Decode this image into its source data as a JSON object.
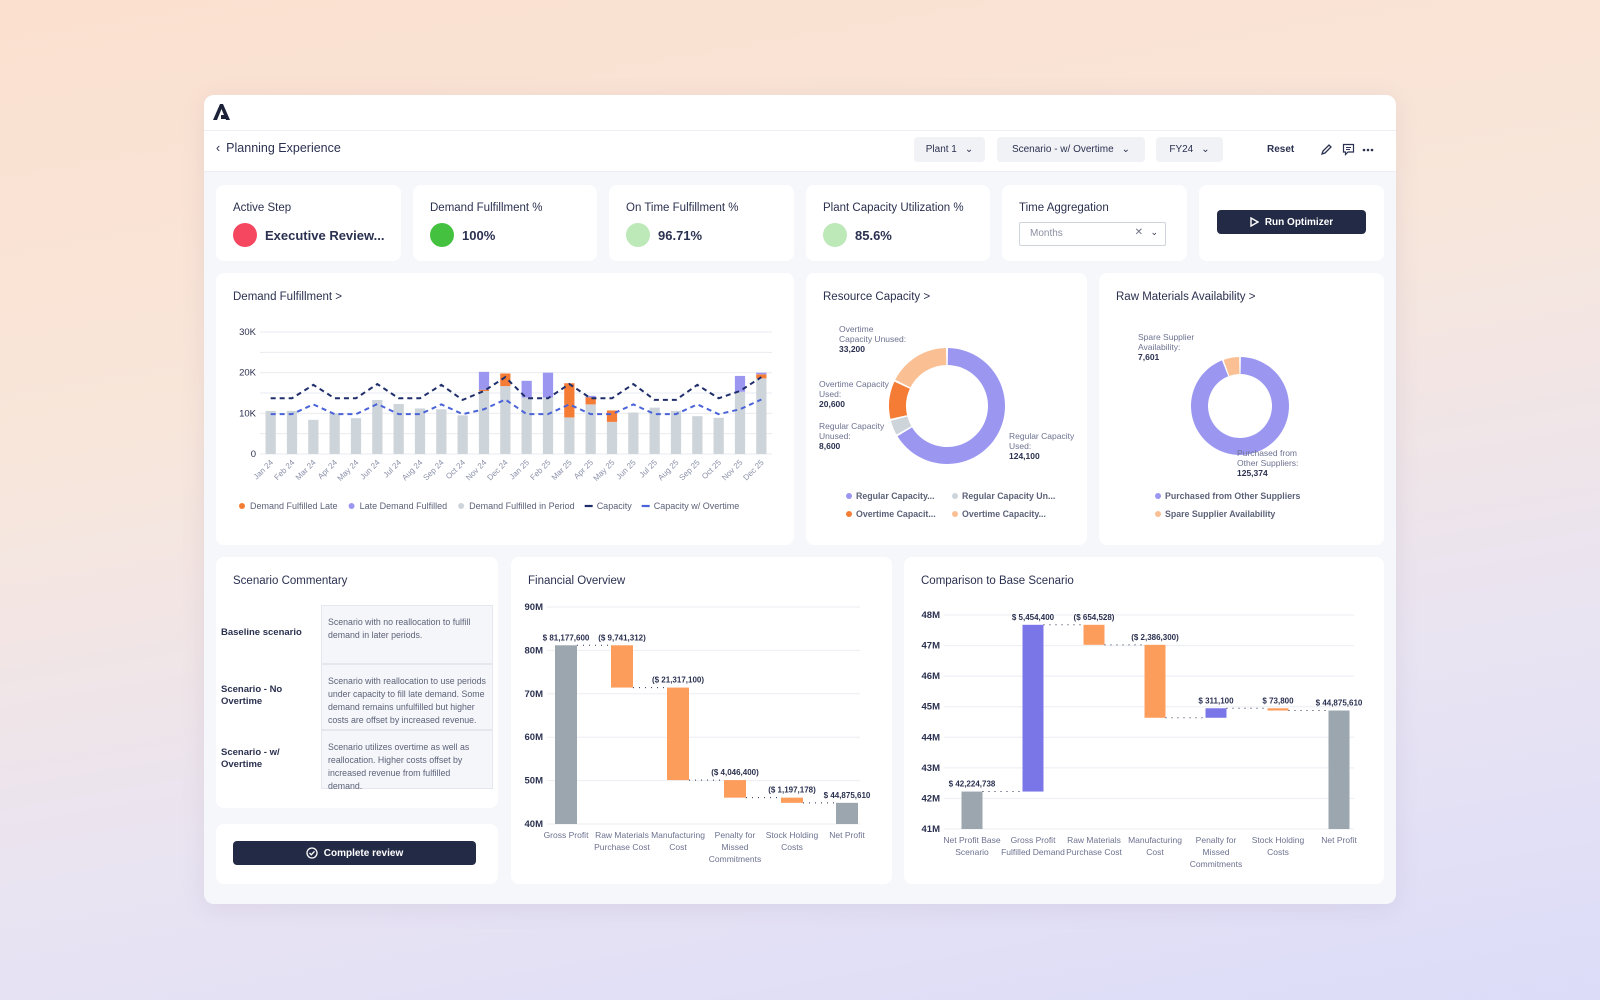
{
  "app": {
    "logo": "A",
    "page_title": "Planning Experience"
  },
  "toolbar": {
    "plant": "Plant 1",
    "scenario": "Scenario - w/ Overtime",
    "year": "FY24",
    "reset": "Reset"
  },
  "kpis": [
    {
      "title": "Active Step",
      "value": "Executive Review...",
      "color": "#f5475f"
    },
    {
      "title": "Demand Fulfillment %",
      "value": "100%",
      "color": "#44c13f"
    },
    {
      "title": "On Time Fulfillment %",
      "value": "96.71%",
      "color": "#bde8b8"
    },
    {
      "title": "Plant Capacity Utilization %",
      "value": "85.6%",
      "color": "#bde8b8"
    }
  ],
  "time_aggregation": {
    "title": "Time Aggregation",
    "value": "Months"
  },
  "run_optimizer": "Run Optimizer",
  "colors": {
    "purple": "#9b97f1",
    "orange": "#f57c35",
    "peach": "#fbbf94",
    "grey": "#cdd4da",
    "navy": "#1f2e6b",
    "blue": "#4a63d8",
    "wf_grey": "#9ba6af",
    "wf_orange": "#fd9d5c",
    "wf_purple": "#7b76e8"
  },
  "chart_data": [
    {
      "type": "bar",
      "title": "Demand Fulfillment >",
      "ylim": [
        0,
        30000
      ],
      "yticks": [
        "0",
        "10K",
        "20K",
        "30K"
      ],
      "categories": [
        "Jan 24",
        "Feb 24",
        "Mar 24",
        "Apr 24",
        "May 24",
        "Jun 24",
        "Jul 24",
        "Aug 24",
        "Sep 24",
        "Oct 24",
        "Nov 24",
        "Dec 24",
        "Jan 25",
        "Feb 25",
        "Mar 25",
        "Apr 25",
        "May 25",
        "Jun 25",
        "Jul 25",
        "Aug 25",
        "Sep 25",
        "Oct 25",
        "Nov 25",
        "Dec 25"
      ],
      "series": [
        {
          "name": "Demand Fulfilled in Period",
          "kind": "bar",
          "values": [
            10600,
            10600,
            8400,
            10000,
            8800,
            13300,
            12300,
            11200,
            11000,
            9500,
            15500,
            16700,
            13900,
            13900,
            9000,
            12200,
            7900,
            10200,
            11400,
            10600,
            9300,
            8900,
            15300,
            18600
          ]
        },
        {
          "name": "Demand Fulfilled Late",
          "kind": "bar",
          "values": [
            0,
            0,
            0,
            0,
            0,
            0,
            0,
            0,
            0,
            0,
            300,
            3100,
            0,
            0,
            8400,
            1700,
            2800,
            0,
            0,
            0,
            0,
            0,
            0,
            1000
          ]
        },
        {
          "name": "Late Demand Fulfilled",
          "kind": "bar",
          "values": [
            0,
            0,
            0,
            0,
            0,
            0,
            0,
            0,
            0,
            0,
            4400,
            0,
            4100,
            6100,
            0,
            400,
            0,
            0,
            0,
            0,
            0,
            0,
            3900,
            400
          ]
        },
        {
          "name": "Capacity",
          "kind": "line",
          "values": [
            13700,
            13700,
            17000,
            13700,
            13700,
            17200,
            13700,
            13700,
            17000,
            13300,
            15500,
            18900,
            13700,
            13700,
            17200,
            13700,
            13700,
            17200,
            13300,
            13300,
            17000,
            13700,
            15500,
            18900
          ]
        },
        {
          "name": "Capacity w/ Overtime",
          "kind": "line",
          "values": [
            9800,
            9800,
            12200,
            9800,
            9800,
            12300,
            9800,
            9800,
            12200,
            9800,
            11000,
            13400,
            9800,
            9800,
            12200,
            9800,
            9800,
            12200,
            9800,
            9800,
            12200,
            9800,
            11000,
            13400
          ]
        }
      ],
      "legend": "bottom"
    },
    {
      "type": "pie",
      "title": "Resource Capacity >",
      "donut": true,
      "slices": [
        {
          "name": "Regular Capacity Used",
          "value": 124100,
          "label": "Regular Capacity Used:",
          "value_label": "124,100",
          "legend": "Regular Capacity..."
        },
        {
          "name": "Regular Capacity Unused",
          "value": 8600,
          "label": "Regular Capacity Unused:",
          "value_label": "8,600",
          "legend": "Regular Capacity Un..."
        },
        {
          "name": "Overtime Capacity Used",
          "value": 20600,
          "label": "Overtime Capacity Used:",
          "value_label": "20,600",
          "legend": "Overtime Capacit..."
        },
        {
          "name": "Overtime Capacity Unused",
          "value": 33200,
          "label": "Overtime Capacity Unused:",
          "value_label": "33,200",
          "legend": "Overtime Capacity..."
        }
      ]
    },
    {
      "type": "pie",
      "title": "Raw Materials Availability >",
      "donut": true,
      "slices": [
        {
          "name": "Purchased from Other Suppliers",
          "value": 125374,
          "label": "Purchased from Other Suppliers:",
          "value_label": "125,374",
          "legend": "Purchased from Other Suppliers"
        },
        {
          "name": "Spare Supplier Availability",
          "value": 7601,
          "label": "Spare Supplier Availability:",
          "value_label": "7,601",
          "legend": "Spare Supplier Availability"
        }
      ]
    },
    {
      "type": "bar",
      "subtype": "waterfall",
      "title": "Financial Overview",
      "ylim": [
        40000000,
        90000000
      ],
      "yticks": [
        "40M",
        "50M",
        "60M",
        "70M",
        "80M",
        "90M"
      ],
      "steps": [
        {
          "category": "Gross Profit",
          "value": 81177600,
          "label": "$ 81,177,600",
          "total": true
        },
        {
          "category": "Raw Materials Purchase Cost",
          "value": -9741312,
          "label": "($ 9,741,312)"
        },
        {
          "category": "Manufacturing Cost",
          "value": -21317100,
          "label": "($ 21,317,100)"
        },
        {
          "category": "Penalty for Missed Commitments",
          "value": -4046400,
          "label": "($ 4,046,400)"
        },
        {
          "category": "Stock Holding Costs",
          "value": -1197178,
          "label": "($ 1,197,178)"
        },
        {
          "category": "Net Profit",
          "value": 44875610,
          "label": "$ 44,875,610",
          "total": true
        }
      ]
    },
    {
      "type": "bar",
      "subtype": "waterfall",
      "title": "Comparison to Base Scenario",
      "ylim": [
        41000000,
        48000000
      ],
      "yticks": [
        "41M",
        "42M",
        "43M",
        "44M",
        "45M",
        "46M",
        "47M",
        "48M"
      ],
      "steps": [
        {
          "category": "Net Profit Base Scenario",
          "value": 42224738,
          "label": "$ 42,224,738",
          "total": true
        },
        {
          "category": "Gross Profit Fulfilled Demand",
          "value": 5454400,
          "label": "$ 5,454,400"
        },
        {
          "category": "Raw Materials Purchase Cost",
          "value": -654528,
          "label": "($ 654,528)"
        },
        {
          "category": "Manufacturing Cost",
          "value": -2386300,
          "label": "($ 2,386,300)"
        },
        {
          "category": "Penalty for Missed Commitments",
          "value": 311100,
          "label": "$ 311,100"
        },
        {
          "category": "Stock Holding Costs",
          "value": -73800,
          "label": "$ 73,800"
        },
        {
          "category": "Net Profit",
          "value": 44875610,
          "label": "$ 44,875,610",
          "total": true
        }
      ]
    }
  ],
  "commentary": {
    "title": "Scenario Commentary",
    "rows": [
      {
        "label": "Baseline scenario",
        "text": "Scenario with no reallocation to fulfill demand in later periods."
      },
      {
        "label": "Scenario - No Overtime",
        "text": "Scenario with reallocation to use periods under capacity to fill late demand. Some demand remains unfulfilled but higher costs are offset by increased revenue."
      },
      {
        "label": "Scenario - w/ Overtime",
        "text": "Scenario utilizes overtime as well as reallocation. Higher costs offset by increased revenue from fulfilled demand."
      }
    ]
  },
  "complete_review": "Complete review"
}
